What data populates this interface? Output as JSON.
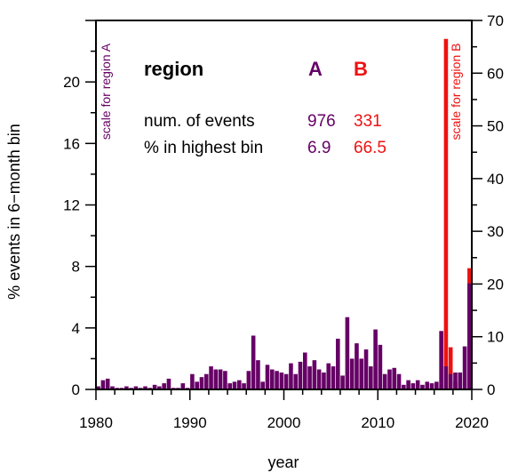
{
  "chart_data": {
    "type": "bar",
    "xlabel": "year",
    "ylabel_left": "% events in 6−month bin",
    "left_axis_note": "scale for region A",
    "right_axis_note": "scale for region B",
    "xlim": [
      1980,
      2020
    ],
    "xticks": [
      "1980",
      "1990",
      "2000",
      "2010",
      "2020"
    ],
    "ylim_left": [
      0,
      24
    ],
    "yticks_left": [
      "0",
      "4",
      "8",
      "12",
      "16",
      "20"
    ],
    "ylim_right": [
      0,
      70
    ],
    "yticks_right": [
      "0",
      "10",
      "20",
      "30",
      "40",
      "50",
      "60",
      "70"
    ],
    "colors": {
      "A": "#660066",
      "B": "#ee1111",
      "text": "#000000"
    },
    "table": {
      "header": {
        "label": "region",
        "a": "A",
        "b": "B"
      },
      "rows": [
        {
          "label": "num. of events",
          "a": "976",
          "b": "331"
        },
        {
          "label": "% in highest bin",
          "a": "6.9",
          "b": "66.5"
        }
      ]
    },
    "series": [
      {
        "name": "A",
        "axis": "left",
        "bin_width_years": 0.5,
        "x": [
          1980.0,
          1980.5,
          1981.0,
          1981.5,
          1982.0,
          1982.5,
          1983.0,
          1983.5,
          1984.0,
          1984.5,
          1985.0,
          1985.5,
          1986.0,
          1986.5,
          1987.0,
          1987.5,
          1988.0,
          1988.5,
          1989.0,
          1989.5,
          1990.0,
          1990.5,
          1991.0,
          1991.5,
          1992.0,
          1992.5,
          1993.0,
          1993.5,
          1994.0,
          1994.5,
          1995.0,
          1995.5,
          1996.0,
          1996.5,
          1997.0,
          1997.5,
          1998.0,
          1998.5,
          1999.0,
          1999.5,
          2000.0,
          2000.5,
          2001.0,
          2001.5,
          2002.0,
          2002.5,
          2003.0,
          2003.5,
          2004.0,
          2004.5,
          2005.0,
          2005.5,
          2006.0,
          2006.5,
          2007.0,
          2007.5,
          2008.0,
          2008.5,
          2009.0,
          2009.5,
          2010.0,
          2010.5,
          2011.0,
          2011.5,
          2012.0,
          2012.5,
          2013.0,
          2013.5,
          2014.0,
          2014.5,
          2015.0,
          2015.5,
          2016.0,
          2016.5,
          2017.0,
          2017.5,
          2018.0,
          2018.5,
          2019.0,
          2019.5
        ],
        "values": [
          0.2,
          0.6,
          0.7,
          0.2,
          0.1,
          0.1,
          0.2,
          0.1,
          0.2,
          0.1,
          0.2,
          0.1,
          0.3,
          0.2,
          0.4,
          0.7,
          0.1,
          0.1,
          0.4,
          0.1,
          1.0,
          0.5,
          0.8,
          1.0,
          1.5,
          1.3,
          1.3,
          1.2,
          0.4,
          0.5,
          0.6,
          0.4,
          1.2,
          3.5,
          1.9,
          0.5,
          1.6,
          1.3,
          1.2,
          1.1,
          1.0,
          1.7,
          1.0,
          1.8,
          2.4,
          1.5,
          1.9,
          1.3,
          1.1,
          1.7,
          1.5,
          3.3,
          0.9,
          4.7,
          2.0,
          3.0,
          2.0,
          2.6,
          1.5,
          3.9,
          2.9,
          1.0,
          1.3,
          1.4,
          1.0,
          0.3,
          0.6,
          0.4,
          0.6,
          0.3,
          0.5,
          0.4,
          0.5,
          3.8,
          1.5,
          1.0,
          1.1,
          1.1,
          2.8,
          6.9
        ]
      },
      {
        "name": "B",
        "axis": "right",
        "bin_width_years": 0.5,
        "x": [
          2016.5,
          2017.0,
          2017.5,
          2018.0,
          2019.5
        ],
        "values": [
          0.5,
          66.5,
          8.0,
          1.5,
          23.0
        ]
      }
    ]
  }
}
